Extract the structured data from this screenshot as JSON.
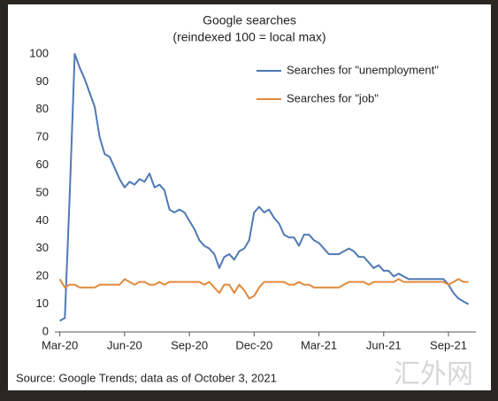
{
  "chart_data": {
    "type": "line",
    "title": "Google searches",
    "subtitle": "(reindexed 100 = local max)",
    "source": "Source: Google Trends; data as of October 3, 2021",
    "watermark": "汇外网",
    "x": [
      0,
      1,
      2,
      3,
      4,
      5,
      6,
      7,
      8,
      9,
      10,
      11,
      12,
      13,
      14,
      15,
      16,
      17,
      18,
      19,
      20,
      21,
      22,
      23,
      24,
      25,
      26,
      27,
      28,
      29,
      30,
      31,
      32,
      33,
      34,
      35,
      36,
      37,
      38,
      39,
      40,
      41,
      42,
      43,
      44,
      45,
      46,
      47,
      48,
      49,
      50,
      51,
      52,
      53,
      54,
      55,
      56,
      57,
      58,
      59,
      60,
      61,
      62,
      63,
      64,
      65,
      66,
      67,
      68,
      69,
      70,
      71,
      72,
      73,
      74,
      75,
      76,
      77,
      78,
      79,
      80,
      81,
      82
    ],
    "series": [
      {
        "name": "Searches for \"unemployment\"",
        "color": "#4f79b5",
        "values": [
          4,
          5,
          50,
          100,
          95,
          91,
          86,
          81,
          70,
          64,
          63,
          59,
          55,
          52,
          54,
          53,
          55,
          54,
          57,
          52,
          53,
          51,
          44,
          43,
          44,
          43,
          40,
          37,
          33,
          31,
          30,
          28,
          23,
          27,
          28,
          26,
          29,
          30,
          33,
          43,
          45,
          43,
          44,
          41,
          39,
          35,
          34,
          34,
          31,
          35,
          35,
          33,
          32,
          30,
          28,
          28,
          28,
          29,
          30,
          29,
          27,
          27,
          25,
          23,
          24,
          22,
          22,
          20,
          21,
          20,
          19,
          19,
          19,
          19,
          19,
          19,
          19,
          19,
          17,
          14,
          12,
          11,
          10
        ]
      },
      {
        "name": "Searches for \"job\"",
        "color": "#e08a3c",
        "values": [
          19,
          16,
          17,
          17,
          16,
          16,
          16,
          16,
          17,
          17,
          17,
          17,
          17,
          19,
          18,
          17,
          18,
          18,
          17,
          17,
          18,
          17,
          18,
          18,
          18,
          18,
          18,
          18,
          18,
          17,
          18,
          16,
          14,
          17,
          17,
          14,
          17,
          15,
          12,
          13,
          16,
          18,
          18,
          18,
          18,
          18,
          17,
          17,
          18,
          17,
          17,
          16,
          16,
          16,
          16,
          16,
          16,
          17,
          18,
          18,
          18,
          18,
          17,
          18,
          18,
          18,
          18,
          18,
          19,
          18,
          18,
          18,
          18,
          18,
          18,
          18,
          18,
          18,
          17,
          18,
          19,
          18,
          18
        ]
      }
    ],
    "xlim": [
      -1,
      83.5
    ],
    "xticks": [
      {
        "value": 0,
        "label": "Mar-20"
      },
      {
        "value": 13,
        "label": "Jun-20"
      },
      {
        "value": 26,
        "label": "Sep-20"
      },
      {
        "value": 39,
        "label": "Dec-20"
      },
      {
        "value": 52,
        "label": "Mar-21"
      },
      {
        "value": 65,
        "label": "Jun-21"
      },
      {
        "value": 78,
        "label": "Sep-21"
      }
    ],
    "ylim": [
      0,
      100
    ],
    "yticks": [
      0,
      10,
      20,
      30,
      40,
      50,
      60,
      70,
      80,
      90,
      100
    ],
    "legend": "top-right",
    "grid": false
  }
}
